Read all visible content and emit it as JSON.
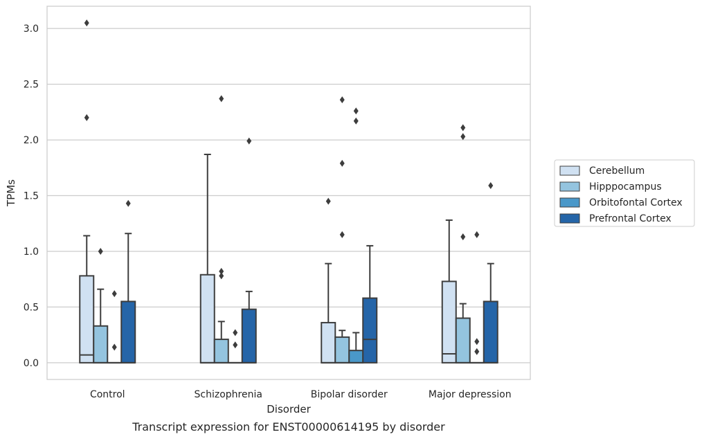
{
  "chart_data": {
    "type": "box",
    "caption": "Transcript expression for ENST00000614195 by disorder",
    "xlabel": "Disorder",
    "ylabel": "TPMs",
    "ylim": [
      -0.15,
      3.2
    ],
    "yticks": [
      "0.0",
      "0.5",
      "1.0",
      "1.5",
      "2.0",
      "2.5",
      "3.0"
    ],
    "ytick_values": [
      0,
      0.5,
      1.0,
      1.5,
      2.0,
      2.5,
      3.0
    ],
    "grid": true,
    "legend_position": "right",
    "categories": [
      "Control",
      "Schizophrenia",
      "Bipolar disorder",
      "Major depression"
    ],
    "series": [
      {
        "name": "Cerebellum",
        "color": "#d0e1f2",
        "boxes": [
          {
            "q1": 0,
            "median": 0.07,
            "q3": 0.78,
            "whisker_low": 0,
            "whisker_high": 1.14,
            "outliers": [
              2.2,
              3.05
            ]
          },
          {
            "q1": 0,
            "median": 0,
            "q3": 0.79,
            "whisker_low": 0,
            "whisker_high": 1.87,
            "outliers": []
          },
          {
            "q1": 0,
            "median": 0,
            "q3": 0.36,
            "whisker_low": 0,
            "whisker_high": 0.89,
            "outliers": [
              1.45
            ]
          },
          {
            "q1": 0,
            "median": 0.08,
            "q3": 0.73,
            "whisker_low": 0,
            "whisker_high": 1.28,
            "outliers": []
          }
        ]
      },
      {
        "name": "Hipppocampus",
        "color": "#94c4df",
        "boxes": [
          {
            "q1": 0,
            "median": 0,
            "q3": 0.33,
            "whisker_low": 0,
            "whisker_high": 0.66,
            "outliers": [
              1.0
            ]
          },
          {
            "q1": 0,
            "median": 0,
            "q3": 0.21,
            "whisker_low": 0,
            "whisker_high": 0.37,
            "outliers": [
              0.78,
              0.82,
              2.37
            ]
          },
          {
            "q1": 0,
            "median": 0,
            "q3": 0.23,
            "whisker_low": 0,
            "whisker_high": 0.29,
            "outliers": [
              1.15,
              1.79,
              2.36
            ]
          },
          {
            "q1": 0,
            "median": 0,
            "q3": 0.4,
            "whisker_low": 0,
            "whisker_high": 0.53,
            "outliers": [
              1.13,
              2.03,
              2.11
            ]
          }
        ]
      },
      {
        "name": "Orbitofontal Cortex",
        "color": "#4a98c9",
        "boxes": [
          {
            "q1": 0,
            "median": 0,
            "q3": 0,
            "whisker_low": 0,
            "whisker_high": 0,
            "outliers": [
              0.14,
              0.62
            ]
          },
          {
            "q1": 0,
            "median": 0,
            "q3": 0,
            "whisker_low": 0,
            "whisker_high": 0,
            "outliers": [
              0.16,
              0.27
            ]
          },
          {
            "q1": 0,
            "median": 0,
            "q3": 0.11,
            "whisker_low": 0,
            "whisker_high": 0.27,
            "outliers": [
              2.17,
              2.26
            ]
          },
          {
            "q1": 0,
            "median": 0,
            "q3": 0,
            "whisker_low": 0,
            "whisker_high": 0,
            "outliers": [
              0.1,
              0.19,
              1.15
            ]
          }
        ]
      },
      {
        "name": "Prefrontal Cortex",
        "color": "#2565a8",
        "boxes": [
          {
            "q1": 0,
            "median": 0,
            "q3": 0.55,
            "whisker_low": 0,
            "whisker_high": 1.16,
            "outliers": [
              1.43
            ]
          },
          {
            "q1": 0,
            "median": 0,
            "q3": 0.48,
            "whisker_low": 0,
            "whisker_high": 0.64,
            "outliers": [
              1.99
            ]
          },
          {
            "q1": 0,
            "median": 0.21,
            "q3": 0.58,
            "whisker_low": 0,
            "whisker_high": 1.05,
            "outliers": []
          },
          {
            "q1": 0,
            "median": 0,
            "q3": 0.55,
            "whisker_low": 0,
            "whisker_high": 0.89,
            "outliers": [
              1.59
            ]
          }
        ]
      }
    ]
  }
}
